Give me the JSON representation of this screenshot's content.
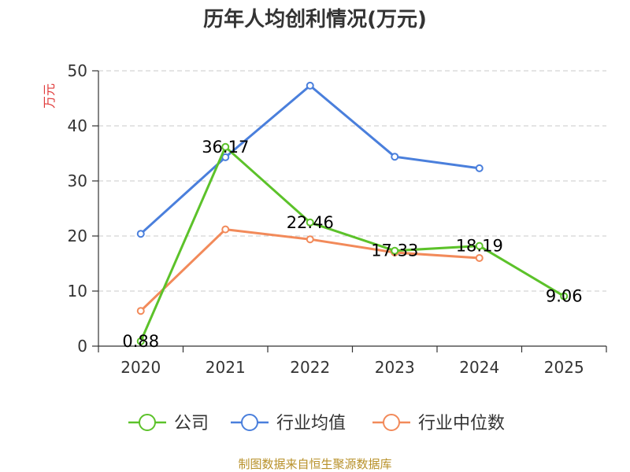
{
  "chart_data": {
    "type": "line",
    "title": "历年人均创利情况(万元)",
    "ylabel": "万元",
    "xlabel": "",
    "categories": [
      "2020",
      "2021",
      "2022",
      "2023",
      "2024",
      "2025"
    ],
    "ylim": [
      0,
      50
    ],
    "yticks": [
      0,
      10,
      20,
      30,
      40,
      50
    ],
    "grid": true,
    "legend_position": "bottom",
    "series": [
      {
        "name": "公司",
        "color": "#5cc22a",
        "values": [
          0.88,
          36.17,
          22.46,
          17.33,
          18.19,
          9.06
        ],
        "labels": [
          "0.88",
          "36.17",
          "22.46",
          "17.33",
          "18.19",
          "9.06"
        ]
      },
      {
        "name": "行业均值",
        "color": "#4a7fdc",
        "values": [
          20.4,
          34.3,
          47.3,
          34.4,
          32.3,
          null
        ]
      },
      {
        "name": "行业中位数",
        "color": "#f28a5a",
        "values": [
          6.4,
          21.2,
          19.4,
          17.0,
          16.0,
          null
        ]
      }
    ],
    "source": "制图数据来自恒生聚源数据库"
  }
}
